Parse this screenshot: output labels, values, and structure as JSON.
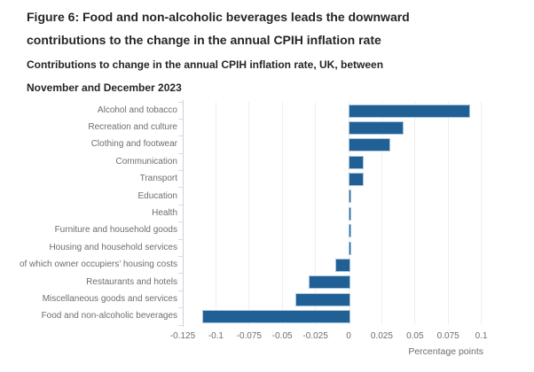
{
  "header": {
    "title_lines": [
      "Figure 6: Food and non-alcoholic beverages leads the downward",
      "contributions to the change in the annual CPIH inflation rate"
    ],
    "subtitle_lines": [
      "Contributions to change in the annual CPIH inflation rate, UK, between",
      "November and December 2023"
    ]
  },
  "chart_data": {
    "type": "bar",
    "orientation": "horizontal",
    "title": "Figure 6: Food and non-alcoholic beverages leads the downward contributions to the change in the annual CPIH inflation rate",
    "subtitle": "Contributions to change in the annual CPIH inflation rate, UK, between November and December 2023",
    "categories": [
      "Alcohol and tobacco",
      "Recreation and culture",
      "Clothing and footwear",
      "Communication",
      "Transport",
      "Education",
      "Health",
      "Furniture and household goods",
      "Housing and household services",
      "of which owner occupiers’ housing costs",
      "Restaurants and hotels",
      "Miscellaneous goods and services",
      "Food and non-alcoholic beverages"
    ],
    "values": [
      0.09,
      0.04,
      0.03,
      0.01,
      0.01,
      0.001,
      0.001,
      0.001,
      0.001,
      -0.01,
      -0.03,
      -0.04,
      -0.11
    ],
    "xlabel": "Percentage points",
    "xlim": [
      -0.135,
      0.111
    ],
    "xticks": [
      -0.125,
      -0.1,
      -0.075,
      -0.05,
      -0.025,
      0,
      0.025,
      0.05,
      0.075,
      0.1
    ],
    "xtick_labels": [
      "-0.125",
      "-0.1",
      "-0.075",
      "-0.05",
      "-0.025",
      "0",
      "0.025",
      "0.05",
      "0.075",
      "0.1"
    ],
    "grid": true,
    "legend": "none",
    "colors": {
      "bar": "#206095",
      "bar_border": "#a8c6dc",
      "gridline": "#efefef",
      "axis_line": "#c6d4e0",
      "label_text": "#6e6e6e",
      "title_text": "#252525"
    }
  }
}
